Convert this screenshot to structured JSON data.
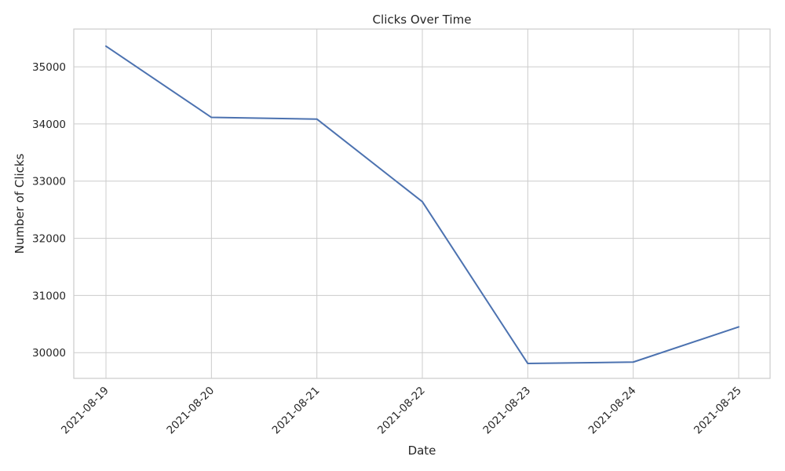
{
  "chart_data": {
    "type": "line",
    "title": "Clicks Over Time",
    "xlabel": "Date",
    "ylabel": "Number of Clicks",
    "x": [
      "2021-08-19",
      "2021-08-20",
      "2021-08-21",
      "2021-08-22",
      "2021-08-23",
      "2021-08-24",
      "2021-08-25"
    ],
    "series": [
      {
        "values": [
          35360,
          34115,
          34085,
          32640,
          29810,
          29835,
          30450
        ],
        "color": "#4c72b0"
      }
    ],
    "ylim": [
      29550,
      35660
    ],
    "yticks": [
      30000,
      31000,
      32000,
      33000,
      34000,
      35000
    ],
    "grid": true,
    "legend": "none"
  }
}
